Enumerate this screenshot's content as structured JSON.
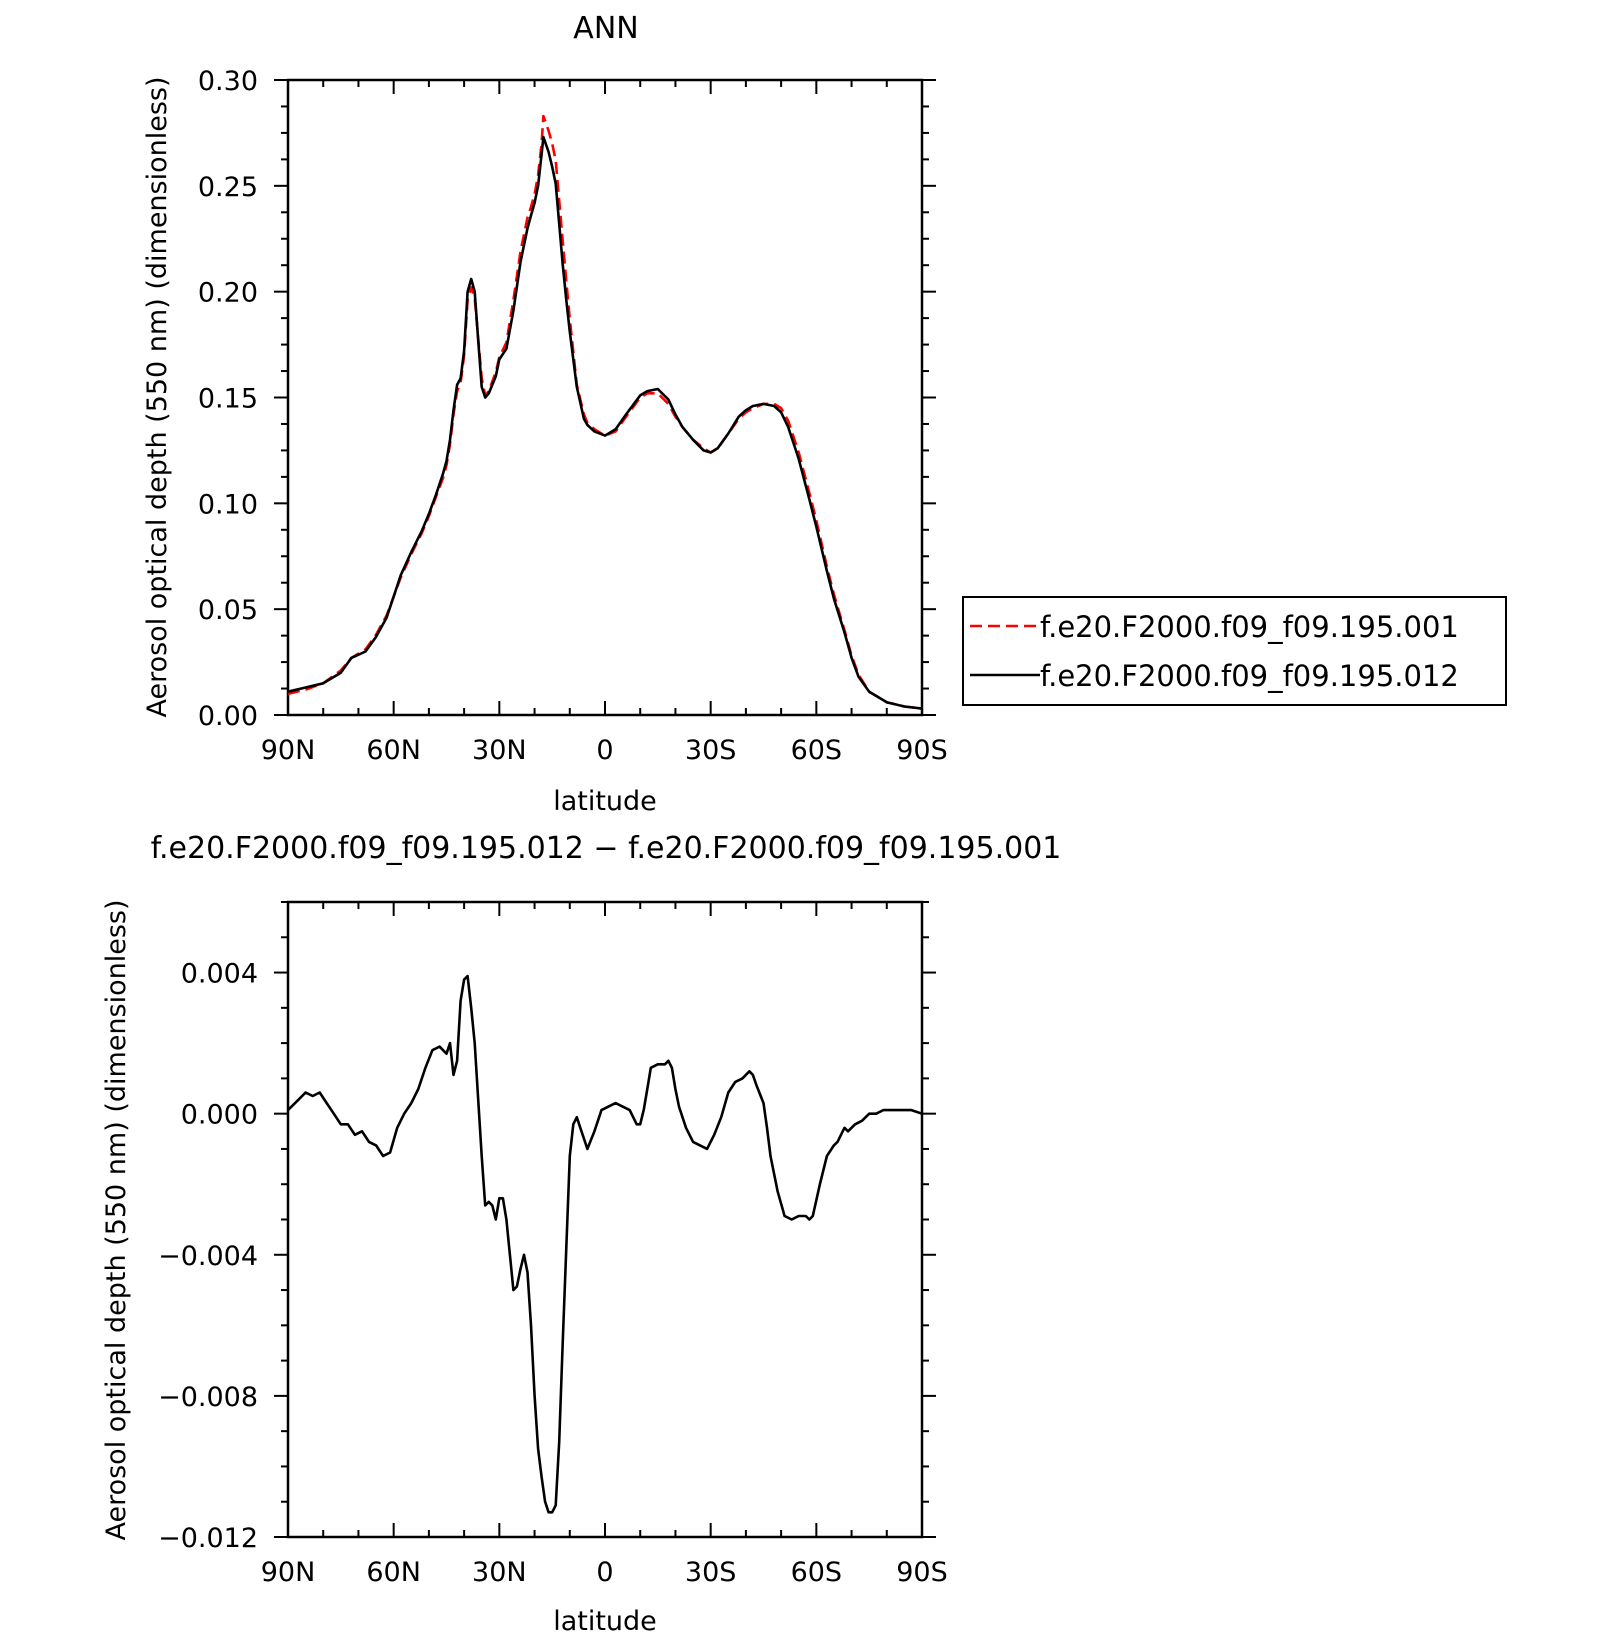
{
  "chart_data": [
    {
      "type": "line",
      "title": "ANN",
      "xlabel": "latitude",
      "ylabel": "Aerosol optical depth (550 nm) (dimensionless)",
      "xlim": [
        90,
        -90
      ],
      "ylim": [
        0.0,
        0.3
      ],
      "x_ticks": [
        90,
        60,
        30,
        0,
        -30,
        -60,
        -90
      ],
      "x_tick_labels": [
        "90N",
        "60N",
        "30N",
        "0",
        "30S",
        "60S",
        "90S"
      ],
      "y_ticks": [
        0.0,
        0.05,
        0.1,
        0.15,
        0.2,
        0.25,
        0.3
      ],
      "y_tick_labels": [
        "0.00",
        "0.05",
        "0.10",
        "0.15",
        "0.20",
        "0.25",
        "0.30"
      ],
      "grid": false,
      "legend_position": "right",
      "series": [
        {
          "name": "f.e20.F2000.f09_f09.195.001",
          "color": "#ff0000",
          "dash": "dashed",
          "x": [
            90,
            85,
            80,
            75,
            72,
            68,
            65,
            62,
            60,
            58,
            55,
            52,
            50,
            48,
            46,
            45,
            44,
            43,
            42,
            41,
            40,
            39,
            38,
            37,
            36,
            35,
            34,
            33,
            31,
            30,
            28,
            26,
            24,
            22,
            21,
            20,
            19,
            18,
            17.5,
            16,
            15,
            14,
            13,
            12,
            11,
            10,
            8,
            6,
            5,
            3,
            0,
            -3,
            -6,
            -10,
            -12,
            -15,
            -18,
            -20,
            -22,
            -25,
            -28,
            -30,
            -32,
            -35,
            -38,
            -40,
            -42,
            -45,
            -48,
            -50,
            -52,
            -55,
            -58,
            -60,
            -63,
            -65,
            -68,
            -70,
            -72,
            -75,
            -80,
            -85,
            -90
          ],
          "y": [
            0.01,
            0.012,
            0.015,
            0.021,
            0.027,
            0.031,
            0.038,
            0.047,
            0.056,
            0.065,
            0.076,
            0.086,
            0.094,
            0.103,
            0.112,
            0.118,
            0.128,
            0.142,
            0.153,
            0.157,
            0.17,
            0.196,
            0.202,
            0.197,
            0.178,
            0.159,
            0.151,
            0.153,
            0.162,
            0.169,
            0.176,
            0.196,
            0.219,
            0.235,
            0.24,
            0.246,
            0.255,
            0.27,
            0.283,
            0.276,
            0.27,
            0.262,
            0.243,
            0.224,
            0.205,
            0.187,
            0.156,
            0.142,
            0.138,
            0.135,
            0.132,
            0.134,
            0.141,
            0.15,
            0.152,
            0.152,
            0.147,
            0.141,
            0.136,
            0.13,
            0.126,
            0.124,
            0.126,
            0.133,
            0.14,
            0.143,
            0.145,
            0.147,
            0.147,
            0.145,
            0.139,
            0.124,
            0.105,
            0.092,
            0.07,
            0.057,
            0.04,
            0.028,
            0.019,
            0.011,
            0.006,
            0.004,
            0.003
          ]
        },
        {
          "name": "f.e20.F2000.f09_f09.195.012",
          "color": "#000000",
          "dash": "solid",
          "x": [
            90,
            85,
            80,
            75,
            72,
            68,
            65,
            62,
            60,
            58,
            55,
            52,
            50,
            48,
            46,
            45,
            44,
            43,
            42,
            41,
            40,
            39,
            38,
            37,
            36,
            35,
            34,
            33,
            31,
            30,
            28,
            26,
            24,
            22,
            21,
            20,
            19,
            18,
            17.5,
            16,
            15,
            14,
            13,
            12,
            11,
            10,
            8,
            6,
            5,
            3,
            0,
            -3,
            -6,
            -10,
            -12,
            -15,
            -18,
            -20,
            -22,
            -25,
            -28,
            -30,
            -32,
            -35,
            -38,
            -40,
            -42,
            -45,
            -48,
            -50,
            -52,
            -55,
            -58,
            -60,
            -63,
            -65,
            -68,
            -70,
            -72,
            -75,
            -80,
            -85,
            -90
          ],
          "y": [
            0.011,
            0.013,
            0.015,
            0.02,
            0.027,
            0.03,
            0.037,
            0.046,
            0.056,
            0.066,
            0.077,
            0.087,
            0.095,
            0.104,
            0.114,
            0.12,
            0.13,
            0.144,
            0.156,
            0.159,
            0.172,
            0.2,
            0.206,
            0.2,
            0.177,
            0.155,
            0.15,
            0.152,
            0.16,
            0.168,
            0.173,
            0.191,
            0.214,
            0.23,
            0.236,
            0.242,
            0.25,
            0.265,
            0.273,
            0.266,
            0.259,
            0.251,
            0.232,
            0.213,
            0.196,
            0.181,
            0.155,
            0.14,
            0.137,
            0.134,
            0.132,
            0.135,
            0.142,
            0.151,
            0.153,
            0.154,
            0.149,
            0.142,
            0.136,
            0.13,
            0.125,
            0.124,
            0.126,
            0.133,
            0.141,
            0.144,
            0.146,
            0.147,
            0.146,
            0.143,
            0.136,
            0.121,
            0.102,
            0.089,
            0.068,
            0.055,
            0.039,
            0.027,
            0.018,
            0.011,
            0.006,
            0.004,
            0.003
          ]
        }
      ]
    },
    {
      "type": "line",
      "title": "f.e20.F2000.f09_f09.195.012 − f.e20.F2000.f09_f09.195.001",
      "xlabel": "latitude",
      "ylabel": "Aerosol optical depth (550 nm) (dimensionless)",
      "xlim": [
        90,
        -90
      ],
      "ylim": [
        -0.012,
        0.006
      ],
      "x_ticks": [
        90,
        60,
        30,
        0,
        -30,
        -60,
        -90
      ],
      "x_tick_labels": [
        "90N",
        "60N",
        "30N",
        "0",
        "30S",
        "60S",
        "90S"
      ],
      "y_ticks": [
        -0.012,
        -0.008,
        -0.004,
        0.0,
        0.004
      ],
      "y_tick_labels": [
        "−0.012",
        "−0.008",
        "−0.004",
        "0.000",
        "0.004"
      ],
      "grid": false,
      "series": [
        {
          "color": "#000000",
          "dash": "solid",
          "x": [
            90,
            87,
            85,
            83,
            81,
            79,
            77,
            75,
            73,
            71,
            69,
            67,
            65,
            63,
            61,
            59,
            57,
            55,
            53,
            51,
            49,
            47,
            45,
            44,
            43,
            42,
            41,
            40,
            39,
            38,
            37,
            36,
            35,
            34,
            33,
            32,
            31,
            30,
            29,
            28,
            27,
            26,
            25,
            24,
            23,
            22,
            21,
            20,
            19,
            18,
            17,
            16,
            15,
            14,
            13,
            12,
            11,
            10,
            9,
            8,
            7,
            5,
            3,
            1,
            -1,
            -3,
            -5,
            -7,
            -9,
            -10,
            -11,
            -12,
            -13,
            -15,
            -17,
            -18,
            -19,
            -20,
            -21,
            -23,
            -25,
            -27,
            -29,
            -31,
            -33,
            -35,
            -37,
            -39,
            -41,
            -42,
            -43,
            -45,
            -46,
            -47,
            -49,
            -51,
            -53,
            -55,
            -57,
            -58,
            -59,
            -61,
            -63,
            -65,
            -66,
            -67,
            -68,
            -69,
            -71,
            -73,
            -75,
            -77,
            -79,
            -81,
            -83,
            -85,
            -87,
            -90
          ],
          "y": [
            0.0001,
            0.0004,
            0.0006,
            0.0005,
            0.0006,
            0.0003,
            0.0,
            -0.0003,
            -0.0003,
            -0.0006,
            -0.0005,
            -0.0008,
            -0.0009,
            -0.0012,
            -0.0011,
            -0.0004,
            0.0,
            0.0003,
            0.0007,
            0.0013,
            0.0018,
            0.0019,
            0.0017,
            0.002,
            0.0011,
            0.0015,
            0.0032,
            0.0038,
            0.0039,
            0.003,
            0.002,
            0.0004,
            -0.0012,
            -0.0026,
            -0.0025,
            -0.0026,
            -0.003,
            -0.0024,
            -0.0024,
            -0.003,
            -0.004,
            -0.005,
            -0.0049,
            -0.0044,
            -0.004,
            -0.0045,
            -0.006,
            -0.008,
            -0.0095,
            -0.0103,
            -0.011,
            -0.0113,
            -0.0113,
            -0.0111,
            -0.0093,
            -0.0065,
            -0.0038,
            -0.0012,
            -0.0003,
            -0.0001,
            -0.0004,
            -0.001,
            -0.0005,
            0.0001,
            0.0002,
            0.0003,
            0.0002,
            0.0001,
            -0.0003,
            -0.0003,
            0.0001,
            0.0007,
            0.0013,
            0.0014,
            0.0014,
            0.0015,
            0.0013,
            0.0007,
            0.0002,
            -0.0004,
            -0.0008,
            -0.0009,
            -0.001,
            -0.0006,
            -0.0001,
            0.0006,
            0.0009,
            0.001,
            0.0012,
            0.0011,
            0.0008,
            0.0003,
            -0.0004,
            -0.0012,
            -0.0022,
            -0.0029,
            -0.003,
            -0.0029,
            -0.0029,
            -0.003,
            -0.0029,
            -0.002,
            -0.0012,
            -0.0009,
            -0.0008,
            -0.0006,
            -0.0004,
            -0.0005,
            -0.0003,
            -0.0002,
            0.0,
            0.0,
            0.0001,
            0.0001,
            0.0001,
            0.0001,
            0.0001,
            0.0
          ]
        }
      ]
    }
  ]
}
